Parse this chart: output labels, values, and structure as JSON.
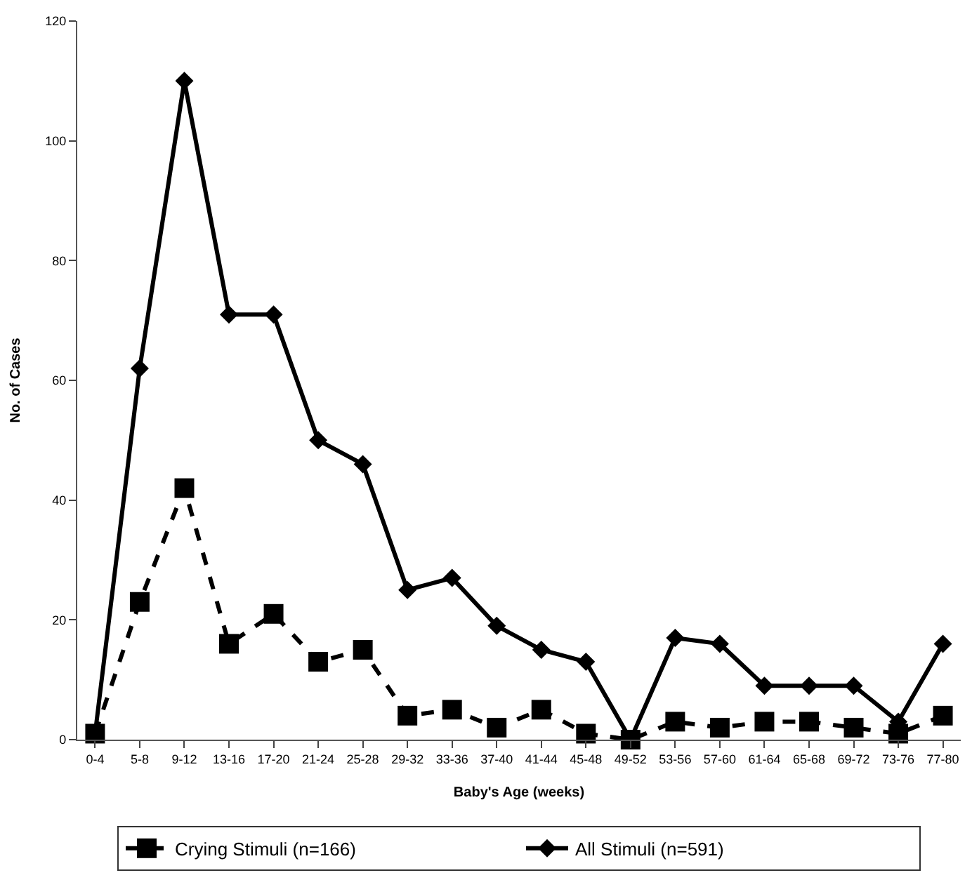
{
  "chart_data": {
    "type": "line",
    "xlabel": "Baby's Age (weeks)",
    "ylabel": "No. of Cases",
    "categories": [
      "0-4",
      "5-8",
      "9-12",
      "13-16",
      "17-20",
      "21-24",
      "25-28",
      "29-32",
      "33-36",
      "37-40",
      "41-44",
      "45-48",
      "49-52",
      "53-56",
      "57-60",
      "61-64",
      "65-68",
      "69-72",
      "73-76",
      "77-80"
    ],
    "series": [
      {
        "name": "Crying Stimuli (n=166)",
        "color": "#000000",
        "marker": "square",
        "line_style": "dashed",
        "values": [
          1,
          23,
          42,
          16,
          21,
          13,
          15,
          4,
          5,
          2,
          5,
          1,
          0,
          3,
          2,
          3,
          3,
          2,
          1,
          4
        ]
      },
      {
        "name": "All Stimuli (n=591)",
        "color": "#000000",
        "marker": "diamond",
        "line_style": "solid",
        "values": [
          1,
          62,
          110,
          71,
          71,
          50,
          46,
          25,
          27,
          19,
          15,
          13,
          0,
          17,
          16,
          9,
          9,
          9,
          3,
          16
        ]
      }
    ],
    "ylim": [
      0,
      120
    ],
    "yticks": [
      0,
      20,
      40,
      60,
      80,
      100,
      120
    ],
    "legend": "bottom"
  }
}
